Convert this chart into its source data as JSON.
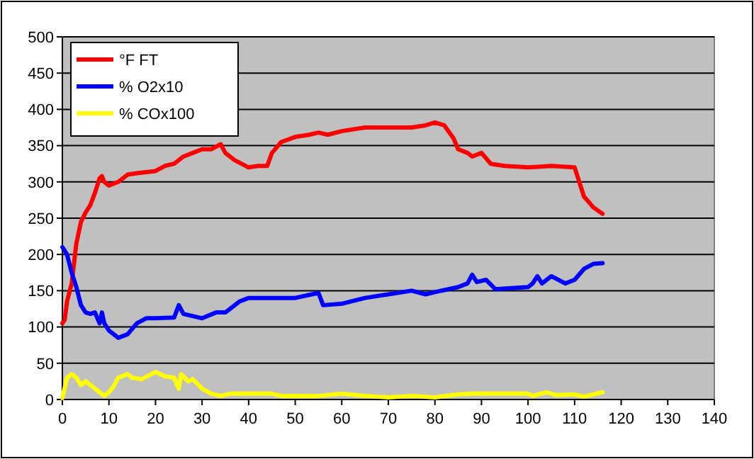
{
  "chart_data": {
    "type": "line",
    "xlim": [
      0,
      140
    ],
    "xticks": [
      0,
      10,
      20,
      30,
      40,
      50,
      60,
      70,
      80,
      90,
      100,
      110,
      120,
      130,
      140
    ],
    "ylim": [
      0,
      500
    ],
    "yticks": [
      0,
      50,
      100,
      150,
      200,
      250,
      300,
      350,
      400,
      450,
      500
    ],
    "grid": "y",
    "legend": "top left",
    "marker": "none",
    "line_style": "solid",
    "series": [
      {
        "name": "°F FT",
        "color": "#ff0000",
        "x": [
          0,
          0.5,
          1,
          2,
          3,
          4,
          5,
          6,
          7,
          8,
          8.5,
          9,
          10,
          12,
          14,
          16,
          20,
          22,
          24,
          26,
          28,
          30,
          32,
          34,
          35,
          37,
          40,
          42,
          44,
          45,
          47,
          50,
          53,
          55,
          57,
          60,
          65,
          70,
          75,
          78,
          80,
          82,
          84,
          85,
          87,
          88,
          90,
          92,
          95,
          100,
          105,
          110,
          111,
          112,
          114,
          116
        ],
        "values": [
          105,
          110,
          135,
          160,
          215,
          245,
          258,
          268,
          285,
          305,
          308,
          300,
          295,
          300,
          310,
          312,
          315,
          322,
          325,
          335,
          340,
          345,
          345,
          352,
          340,
          330,
          320,
          322,
          322,
          340,
          355,
          362,
          365,
          368,
          365,
          370,
          375,
          375,
          375,
          378,
          382,
          378,
          360,
          345,
          340,
          335,
          340,
          325,
          322,
          320,
          322,
          320,
          300,
          280,
          265,
          256
        ]
      },
      {
        "name": "% O2x10",
        "color": "#0000ff",
        "x": [
          0,
          1,
          2,
          3,
          4,
          5,
          6,
          7,
          8,
          8.5,
          9,
          10,
          12,
          14,
          16,
          18,
          20,
          24,
          25,
          26,
          30,
          33,
          35,
          38,
          40,
          45,
          50,
          55,
          56,
          60,
          65,
          70,
          75,
          78,
          80,
          85,
          87,
          88,
          89,
          91,
          93,
          100,
          101,
          102,
          103,
          105,
          108,
          110,
          112,
          114,
          116
        ],
        "values": [
          210,
          200,
          175,
          155,
          130,
          120,
          118,
          120,
          105,
          120,
          105,
          95,
          85,
          90,
          105,
          112,
          112,
          113,
          130,
          118,
          112,
          120,
          120,
          135,
          140,
          140,
          140,
          147,
          130,
          132,
          140,
          145,
          150,
          145,
          148,
          155,
          160,
          172,
          162,
          165,
          152,
          155,
          160,
          170,
          160,
          170,
          160,
          165,
          180,
          187,
          188
        ]
      },
      {
        "name": "% COx100",
        "color": "#ffff00",
        "x": [
          0,
          1,
          2,
          3,
          4,
          5,
          7,
          8,
          9,
          10,
          11,
          12,
          14,
          15,
          17,
          20,
          22,
          24,
          25,
          25.5,
          27,
          28,
          30,
          32,
          34,
          36,
          40,
          45,
          47,
          55,
          60,
          65,
          70,
          75,
          80,
          85,
          88,
          95,
          100,
          101,
          104,
          106,
          110,
          112,
          116
        ],
        "values": [
          2,
          30,
          35,
          30,
          20,
          25,
          15,
          10,
          5,
          10,
          18,
          30,
          35,
          30,
          28,
          38,
          32,
          30,
          15,
          35,
          25,
          28,
          15,
          8,
          5,
          8,
          8,
          8,
          5,
          5,
          8,
          5,
          3,
          5,
          3,
          7,
          8,
          8,
          8,
          5,
          10,
          6,
          7,
          4,
          10
        ]
      }
    ]
  }
}
